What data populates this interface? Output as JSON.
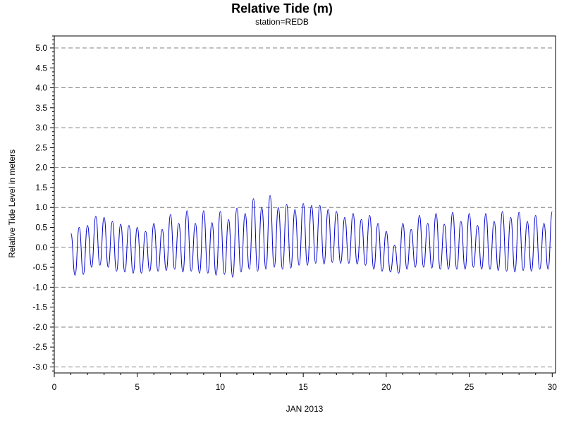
{
  "chart_data": {
    "type": "line",
    "title": "Relative Tide (m)",
    "subtitle": "station=REDB",
    "xlabel": "JAN 2013",
    "ylabel": "Relative Tide Level in meters",
    "xlim": [
      0,
      30.2
    ],
    "ylim": [
      -3.15,
      5.3
    ],
    "xticks": [
      0,
      5,
      10,
      15,
      20,
      25,
      30
    ],
    "yticks": [
      -3.0,
      -2.5,
      -2.0,
      -1.5,
      -1.0,
      -0.5,
      0.0,
      0.5,
      1.0,
      1.5,
      2.0,
      2.5,
      3.0,
      3.5,
      4.0,
      4.5,
      5.0
    ],
    "ytick_labels": [
      "-3.0",
      "-2.5",
      "-2.0",
      "-1.5",
      "-1.0",
      "-0.5",
      "0.0",
      "0.5",
      "1.0",
      "1.5",
      "2.0",
      "2.5",
      "3.0",
      "3.5",
      "4.0",
      "4.5",
      "5.0"
    ],
    "gridlines_y": [
      -3.0,
      -2.0,
      -1.0,
      0.0,
      1.0,
      2.0,
      3.0,
      4.0,
      5.0
    ],
    "grid": "horizontal dashed",
    "series": [
      {
        "color": "#0000cc",
        "x": [
          1.0,
          1.25,
          1.5,
          1.75,
          2.0,
          2.25,
          2.5,
          2.75,
          3.0,
          3.25,
          3.5,
          3.75,
          4.0,
          4.25,
          4.5,
          4.75,
          5.0,
          5.25,
          5.5,
          5.75,
          6.0,
          6.25,
          6.5,
          6.75,
          7.0,
          7.25,
          7.5,
          7.75,
          8.0,
          8.25,
          8.5,
          8.75,
          9.0,
          9.25,
          9.5,
          9.75,
          10.0,
          10.25,
          10.5,
          10.75,
          11.0,
          11.25,
          11.5,
          11.75,
          12.0,
          12.25,
          12.5,
          12.75,
          13.0,
          13.25,
          13.5,
          13.75,
          14.0,
          14.25,
          14.5,
          14.75,
          15.0,
          15.25,
          15.5,
          15.75,
          16.0,
          16.25,
          16.5,
          16.75,
          17.0,
          17.25,
          17.5,
          17.75,
          18.0,
          18.25,
          18.5,
          18.75,
          19.0,
          19.25,
          19.5,
          19.75,
          20.0,
          20.25,
          20.5,
          20.75,
          21.0,
          21.25,
          21.5,
          21.75,
          22.0,
          22.25,
          22.5,
          22.75,
          23.0,
          23.25,
          23.5,
          23.75,
          24.0,
          24.25,
          24.5,
          24.75,
          25.0,
          25.25,
          25.5,
          25.75,
          26.0,
          26.25,
          26.5,
          26.75,
          27.0,
          27.25,
          27.5,
          27.75,
          28.0,
          28.25,
          28.5,
          28.75,
          29.0,
          29.25,
          29.5,
          29.75,
          30.0
        ],
        "y": [
          0.35,
          -0.7,
          0.5,
          -0.68,
          0.55,
          -0.5,
          0.78,
          -0.45,
          0.75,
          -0.5,
          0.65,
          -0.6,
          0.58,
          -0.62,
          0.55,
          -0.65,
          0.5,
          -0.65,
          0.4,
          -0.6,
          0.6,
          -0.6,
          0.45,
          -0.58,
          0.82,
          -0.55,
          0.6,
          -0.62,
          0.92,
          -0.6,
          0.6,
          -0.65,
          0.92,
          -0.65,
          0.62,
          -0.7,
          0.9,
          -0.68,
          0.7,
          -0.75,
          0.98,
          -0.62,
          0.85,
          -0.55,
          1.22,
          -0.6,
          1.0,
          -0.55,
          1.3,
          -0.5,
          1.0,
          -0.55,
          1.08,
          -0.52,
          0.95,
          -0.45,
          1.1,
          -0.45,
          1.05,
          -0.4,
          1.05,
          -0.42,
          0.95,
          -0.38,
          0.9,
          -0.4,
          0.75,
          -0.4,
          0.85,
          -0.42,
          0.7,
          -0.45,
          0.8,
          -0.55,
          0.6,
          -0.6,
          0.4,
          -0.62,
          0.05,
          -0.65,
          0.6,
          -0.55,
          0.45,
          -0.5,
          0.8,
          -0.5,
          0.6,
          -0.52,
          0.85,
          -0.55,
          0.58,
          -0.55,
          0.88,
          -0.55,
          0.65,
          -0.55,
          0.85,
          -0.5,
          0.55,
          -0.55,
          0.85,
          -0.55,
          0.65,
          -0.58,
          0.9,
          -0.6,
          0.75,
          -0.62,
          0.88,
          -0.58,
          0.65,
          -0.6,
          0.8,
          -0.55,
          0.6,
          -0.55,
          0.9
        ]
      }
    ]
  }
}
